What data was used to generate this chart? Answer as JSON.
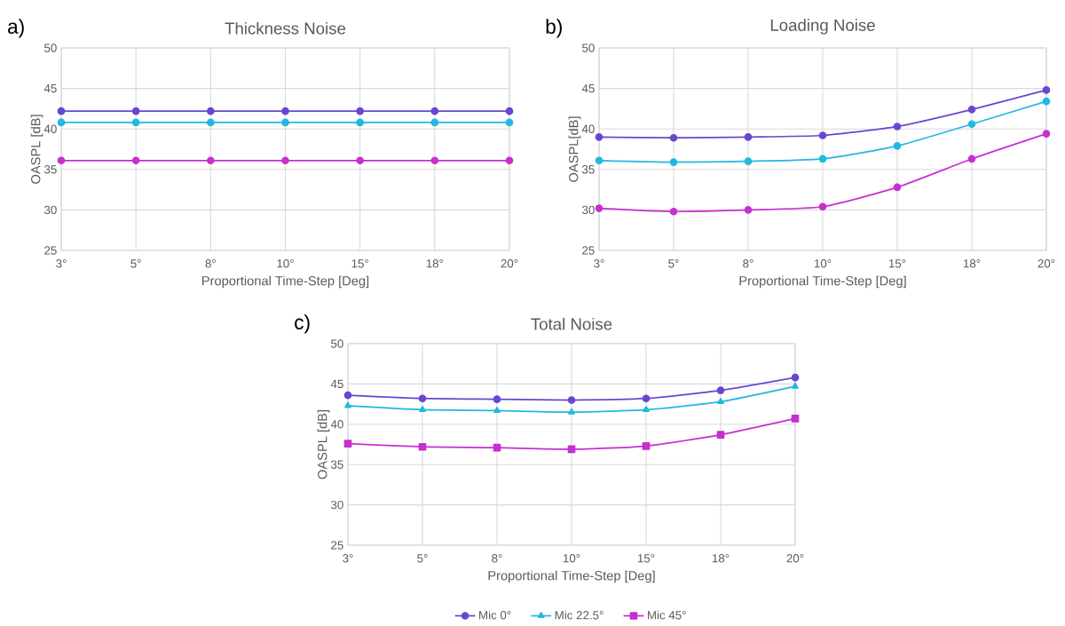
{
  "chart_data": [
    {
      "type": "line",
      "title": "Thickness Noise",
      "annotations": [
        "a)"
      ],
      "xlabel": "Proportional Time-Step [Deg]",
      "ylabel": "OASPL [dB]",
      "categories": [
        "3°",
        "5°",
        "8°",
        "10°",
        "15°",
        "18°",
        "20°"
      ],
      "ylim": [
        25,
        50
      ],
      "yticks": [
        25,
        30,
        35,
        40,
        45,
        50
      ],
      "grid": true,
      "legend": false,
      "marker": "circle",
      "line_style": "solid",
      "series": [
        {
          "color": "#6a46d0",
          "values": [
            42.2,
            42.2,
            42.2,
            42.2,
            42.2,
            42.2,
            42.2
          ]
        },
        {
          "color": "#22b8e0",
          "values": [
            40.8,
            40.8,
            40.8,
            40.8,
            40.8,
            40.8,
            40.8
          ]
        },
        {
          "color": "#c62fd0",
          "values": [
            36.1,
            36.1,
            36.1,
            36.1,
            36.1,
            36.1,
            36.1
          ]
        }
      ]
    },
    {
      "type": "line",
      "title": "Loading Noise",
      "annotations": [
        "b)"
      ],
      "xlabel": "Proportional Time-Step [Deg]",
      "ylabel": "OASPL[dB]",
      "categories": [
        "3°",
        "5°",
        "8°",
        "10°",
        "15°",
        "18°",
        "20°"
      ],
      "ylim": [
        25,
        50
      ],
      "yticks": [
        25,
        30,
        35,
        40,
        45,
        50
      ],
      "grid": true,
      "legend": false,
      "marker": "circle",
      "line_style": "solid",
      "series": [
        {
          "color": "#6a46d0",
          "values": [
            39.0,
            38.9,
            39.0,
            39.2,
            40.3,
            42.4,
            44.8
          ]
        },
        {
          "color": "#22b8e0",
          "values": [
            36.1,
            35.9,
            36.0,
            36.3,
            37.9,
            40.6,
            43.4
          ]
        },
        {
          "color": "#c62fd0",
          "values": [
            30.2,
            29.8,
            30.0,
            30.4,
            32.8,
            36.3,
            39.4
          ]
        }
      ]
    },
    {
      "type": "line",
      "title": "Total Noise",
      "annotations": [
        "c)"
      ],
      "xlabel": "Proportional Time-Step [Deg]",
      "ylabel": "OASPL [dB]",
      "categories": [
        "3°",
        "5°",
        "8°",
        "10°",
        "15°",
        "18°",
        "20°"
      ],
      "ylim": [
        25,
        50
      ],
      "yticks": [
        25,
        30,
        35,
        40,
        45,
        50
      ],
      "grid": true,
      "legend": "bottom",
      "line_style": "solid",
      "series": [
        {
          "name": "Mic 0°",
          "color": "#6a46d0",
          "marker": "circle",
          "values": [
            43.6,
            43.2,
            43.1,
            43.0,
            43.2,
            44.2,
            45.8
          ]
        },
        {
          "name": "Mic 22.5°",
          "color": "#22b8e0",
          "marker": "triangle",
          "values": [
            42.3,
            41.8,
            41.7,
            41.5,
            41.8,
            42.8,
            44.7
          ]
        },
        {
          "name": "Mic 45°",
          "color": "#c62fd0",
          "marker": "square",
          "values": [
            37.6,
            37.2,
            37.1,
            36.9,
            37.3,
            38.7,
            40.7
          ]
        }
      ]
    }
  ]
}
